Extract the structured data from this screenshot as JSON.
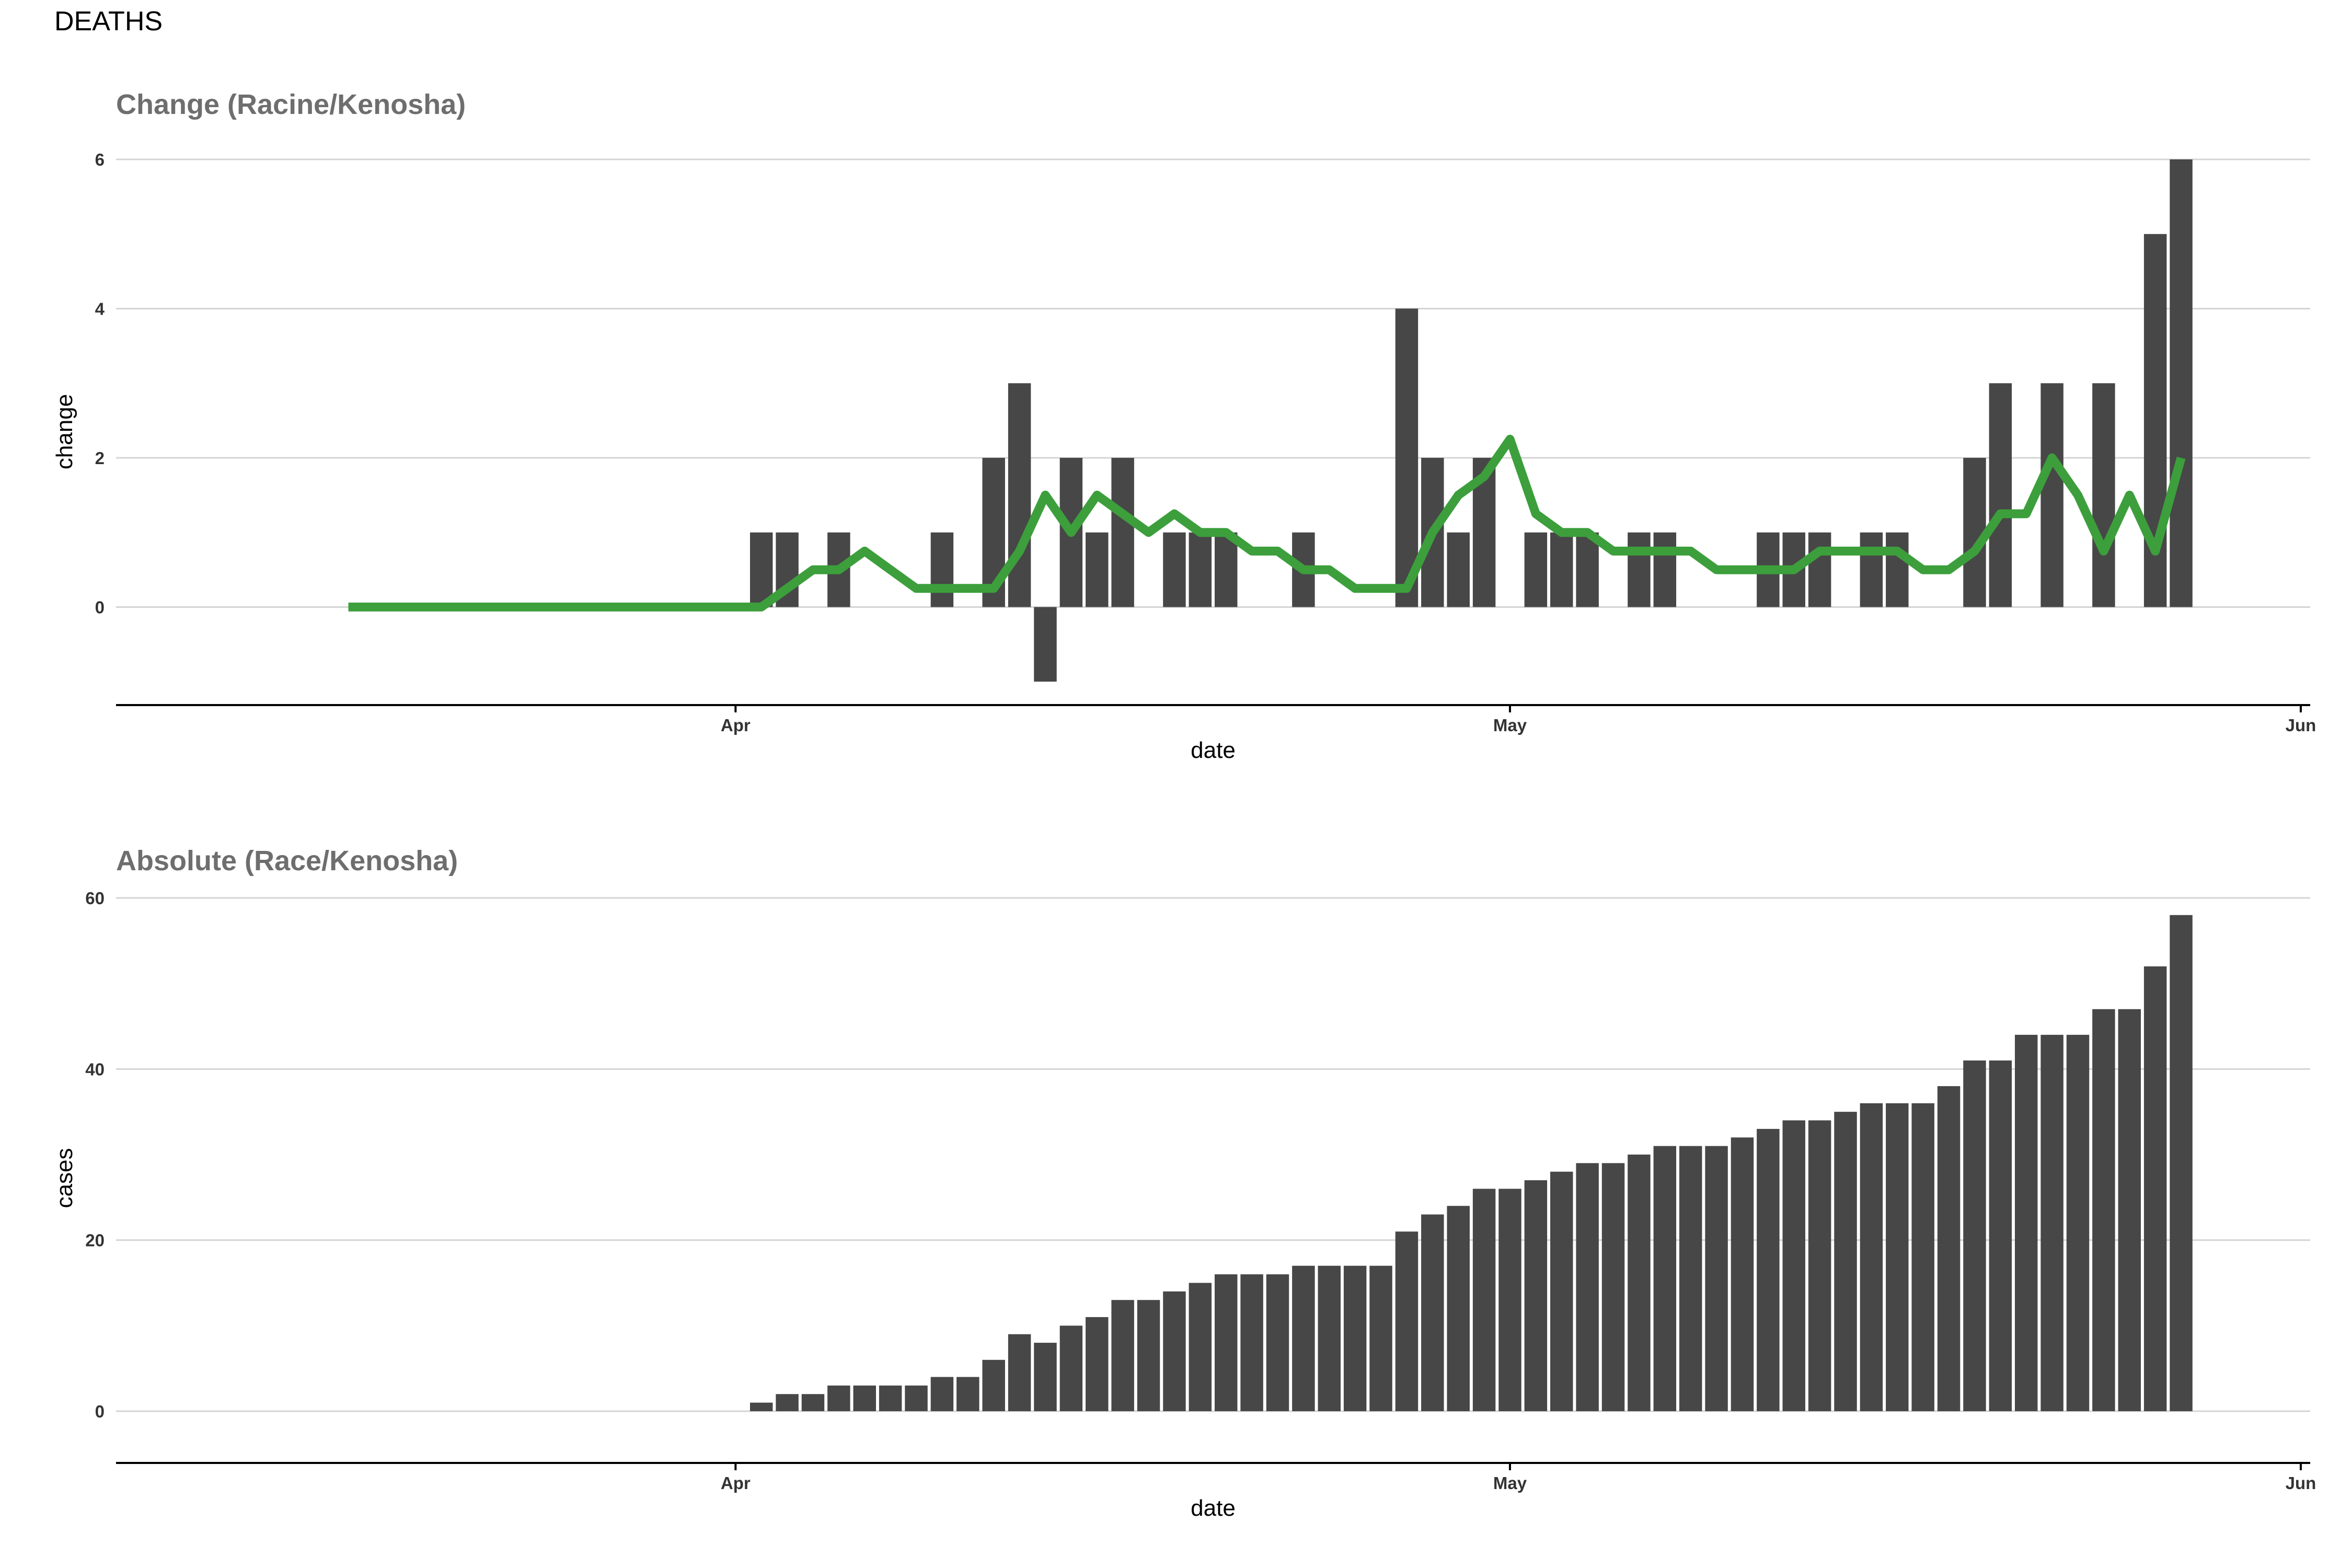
{
  "page_title": "DEATHS",
  "colors": {
    "bar": "#474747",
    "line": "#3c9f3c",
    "panel_title": "#6e6e6e",
    "grid": "#d4d4d4"
  },
  "chart_data": [
    {
      "type": "bar",
      "title": "Change (Racine/Kenosha)",
      "xlabel": "date",
      "ylabel": "change",
      "xlim": [
        "2020-03-08",
        "2020-06-01"
      ],
      "ylim": [
        -1.3,
        6.0
      ],
      "x_ticks": [
        {
          "date": "2020-04-01",
          "label": "Apr"
        },
        {
          "date": "2020-05-01",
          "label": "May"
        },
        {
          "date": "2020-06-01",
          "label": "Jun"
        }
      ],
      "y_ticks": [
        0,
        2,
        4,
        6
      ],
      "grid": true,
      "series": [
        {
          "type": "bar",
          "start_date": "2020-03-17",
          "values": [
            0,
            0,
            0,
            0,
            0,
            0,
            0,
            0,
            0,
            0,
            0,
            0,
            0,
            0,
            0,
            0,
            1,
            1,
            0,
            1,
            0,
            0,
            0,
            1,
            0,
            2,
            3,
            -1,
            2,
            1,
            2,
            0,
            1,
            1,
            1,
            0,
            0,
            1,
            0,
            0,
            0,
            4,
            2,
            1,
            2,
            0,
            1,
            1,
            1,
            0,
            1,
            1,
            0,
            0,
            0,
            1,
            1,
            1,
            0,
            1,
            1,
            0,
            0,
            2,
            3,
            0,
            3,
            0,
            3,
            0,
            5,
            6
          ]
        },
        {
          "type": "line",
          "start_date": "2020-03-17",
          "values": [
            0,
            0,
            0,
            0,
            0,
            0,
            0,
            0,
            0,
            0,
            0,
            0,
            0,
            0,
            0,
            0,
            0,
            0.25,
            0.5,
            0.5,
            0.75,
            0.5,
            0.25,
            0.25,
            0.25,
            0.25,
            0.75,
            1.5,
            1.0,
            1.5,
            1.25,
            1.0,
            1.25,
            1.0,
            1.0,
            0.75,
            0.75,
            0.5,
            0.5,
            0.25,
            0.25,
            0.25,
            1.0,
            1.5,
            1.75,
            2.25,
            1.25,
            1.0,
            1.0,
            0.75,
            0.75,
            0.75,
            0.75,
            0.5,
            0.5,
            0.5,
            0.5,
            0.75,
            0.75,
            0.75,
            0.75,
            0.5,
            0.5,
            0.75,
            1.25,
            1.25,
            2.0,
            1.5,
            0.75,
            1.5,
            0.75,
            2.0
          ]
        }
      ]
    },
    {
      "type": "bar",
      "title": "Absolute (Race/Kenosha)",
      "xlabel": "date",
      "ylabel": "cases",
      "xlim": [
        "2020-03-08",
        "2020-06-01"
      ],
      "ylim": [
        -5.5,
        60.0
      ],
      "x_ticks": [
        {
          "date": "2020-04-01",
          "label": "Apr"
        },
        {
          "date": "2020-05-01",
          "label": "May"
        },
        {
          "date": "2020-06-01",
          "label": "Jun"
        }
      ],
      "y_ticks": [
        0,
        20,
        40,
        60
      ],
      "grid": true,
      "series": [
        {
          "type": "bar",
          "start_date": "2020-03-17",
          "values": [
            0,
            0,
            0,
            0,
            0,
            0,
            0,
            0,
            0,
            0,
            0,
            0,
            0,
            0,
            0,
            0,
            1,
            2,
            2,
            3,
            3,
            3,
            3,
            4,
            4,
            6,
            9,
            8,
            10,
            11,
            13,
            13,
            14,
            15,
            16,
            16,
            16,
            17,
            17,
            17,
            17,
            21,
            23,
            24,
            26,
            26,
            27,
            28,
            29,
            29,
            30,
            31,
            31,
            31,
            32,
            33,
            34,
            34,
            35,
            36,
            36,
            36,
            38,
            41,
            41,
            44,
            44,
            44,
            47,
            47,
            52,
            58
          ]
        }
      ]
    }
  ]
}
